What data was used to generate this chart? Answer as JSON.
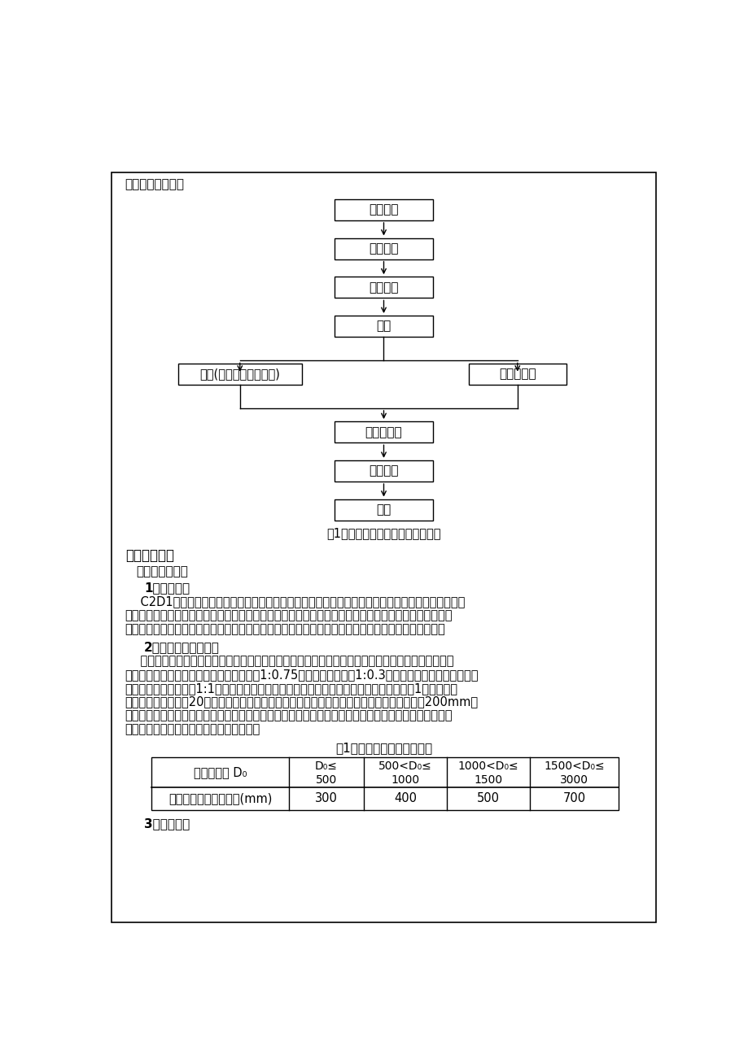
{
  "page_bg": "#ffffff",
  "border_color": "#000000",
  "section3_title": "三、施工工艺流程",
  "flowchart_boxes": [
    "测量放样",
    "沟槽开挖",
    "平基管座",
    "安管"
  ],
  "flowchart_branch_left": "接口(橡胶圈、水泥砂浆)",
  "flowchart_branch_right": "检查井施工",
  "flowchart_boxes_bottom": [
    "功能性检测",
    "沟槽回填",
    "验收"
  ],
  "figure_caption": "图1给水、排水管道施工工艺流程图",
  "section4_title": "四、施工方法",
  "subsection1_title": "（一）管道施工",
  "item1_title": "1、测量放样",
  "item1_lines": [
    "    C2D1地块的管线工程依据工作面移交状况，采纳分段施工，分段放样。依据管井坐标及线路走向，",
    "放出管道开挖边线，并在线路一侧标注管井所在位置及编号，用白灰在地上画出。通过沟底管径、工作面",
    "宽度、放坡坡度确定开挖开口线位置。线位设好以后请监理工程师检测，符合要求后再进行下道工序。"
  ],
  "item2_title": "2、管道沟槽土方开挖",
  "item2_lines": [
    "    沟槽开挖前，应对沟槽中线及开挖边线进行技术复核，并与有关单位取得联系，查清地下管线状况。",
    "开挖时采纳机械挖土，土方开挖放坡坡比为1:0.75，石方放坡坡比为1:0.3，沟槽顶部土石方松散的地段",
    "可适当降低开挖坡度至1:1，防止松散石块滚落危及作业面平安。管道工作面的宽度依据表1所示。土方",
    "开挖至沟底标高以上20厘米，然后人工清挖至设计标高。当开挖沟槽基础为岩石时，槽底超挖200mm，",
    "采纳砂砾石回填至设计高程后，再施工管道基础。沟槽开挖成型后，对槽底进行修正，假如小部分超挖，",
    "用灰土回填。基槽施工做好隐蔽验收记录。"
  ],
  "table_title": "表1：管道一侧的工作面宽度",
  "table_col1_header": "管道的外径 D₀",
  "table_headers": [
    [
      "D₀≤",
      "500"
    ],
    [
      "500<D₀≤",
      "1000"
    ],
    [
      "1000<D₀≤",
      "1500"
    ],
    [
      "1500<D₀≤",
      "3000"
    ]
  ],
  "table_row2_col1": "管道一侧的工作面宽度(mm)",
  "table_row2_values": [
    "300",
    "400",
    "500",
    "700"
  ],
  "item3_title": "3、管道基础"
}
